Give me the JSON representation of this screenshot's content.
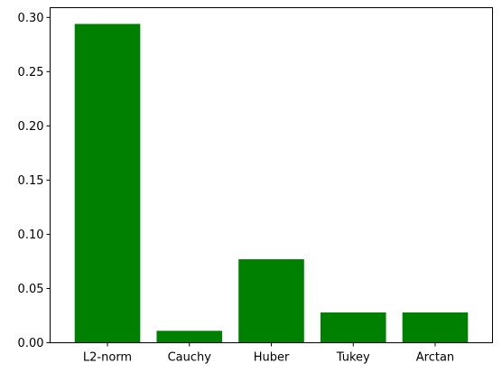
{
  "chart_data": {
    "type": "bar",
    "categories": [
      "L2-norm",
      "Cauchy",
      "Huber",
      "Tukey",
      "Arctan"
    ],
    "values": [
      0.294,
      0.011,
      0.077,
      0.028,
      0.028
    ],
    "title": "",
    "xlabel": "",
    "ylabel": "",
    "ylim": [
      0,
      0.309
    ],
    "yticks": [
      0.0,
      0.05,
      0.1,
      0.15,
      0.2,
      0.25,
      0.3
    ],
    "ytick_labels": [
      "0.00",
      "0.05",
      "0.10",
      "0.15",
      "0.20",
      "0.25",
      "0.30"
    ],
    "bar_color": "#008000",
    "grid": false,
    "legend": "none"
  }
}
